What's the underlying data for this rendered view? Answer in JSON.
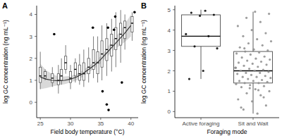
{
  "chart_data": [
    {
      "type": "box",
      "title": "A",
      "xlabel": "Field body temperature (°C)",
      "ylabel": "log GC concentration (ng mL⁻¹)",
      "xlim": [
        24.4,
        41.2
      ],
      "xticks": [
        25,
        30,
        35,
        40
      ],
      "ylim": [
        -0.7,
        4.4
      ],
      "yticks": [
        0,
        1,
        2,
        3,
        4
      ],
      "color": "#595959",
      "boxes": {
        "x": [
          25.0,
          25.8,
          27.0,
          28.0,
          28.5,
          29.2,
          30.0,
          30.8,
          31.5,
          32.2,
          33.0,
          33.8,
          34.5,
          35.2,
          36.0,
          36.8,
          37.5,
          38.3,
          39.0,
          40.2
        ],
        "whisker_low": [
          0.6,
          1.0,
          0.7,
          0.4,
          0.8,
          1.3,
          0.6,
          0.9,
          0.8,
          0.7,
          0.9,
          1.1,
          0.9,
          1.0,
          1.2,
          1.4,
          1.6,
          1.8,
          2.4,
          2.8
        ],
        "q1": [
          0.9,
          1.1,
          0.9,
          0.8,
          1.0,
          1.5,
          0.9,
          1.2,
          1.0,
          1.0,
          1.3,
          1.5,
          1.3,
          1.6,
          1.9,
          2.1,
          2.4,
          2.6,
          2.9,
          3.2
        ],
        "median": [
          1.2,
          1.2,
          1.1,
          1.0,
          1.2,
          1.8,
          1.1,
          1.5,
          1.3,
          1.3,
          1.6,
          1.8,
          1.8,
          2.2,
          2.4,
          2.6,
          2.9,
          3.1,
          3.4,
          3.6
        ],
        "q3": [
          1.6,
          1.4,
          1.3,
          1.3,
          1.5,
          2.1,
          1.4,
          1.8,
          1.7,
          1.8,
          2.0,
          2.4,
          2.3,
          2.8,
          2.9,
          3.1,
          3.4,
          3.6,
          3.7,
          3.9
        ],
        "whisker_high": [
          2.3,
          1.5,
          1.6,
          1.7,
          2.0,
          2.6,
          1.7,
          2.0,
          2.2,
          2.4,
          2.5,
          3.0,
          3.0,
          3.5,
          3.6,
          3.8,
          4.1,
          4.2,
          4.0,
          4.1
        ]
      },
      "outliers": {
        "x": [
          27.3,
          33.7,
          36.2,
          37.2,
          37.4,
          35.3,
          36.0,
          36.3,
          38.5,
          40.6
        ],
        "y": [
          3.1,
          3.4,
          3.4,
          3.3,
          3.9,
          0.5,
          -0.1,
          -0.35,
          0.9,
          4.1
        ],
        "color": "#000000"
      },
      "fit": {
        "x": [
          25,
          26,
          27,
          28,
          29,
          30,
          31,
          32,
          33,
          34,
          35,
          36,
          37,
          38,
          39,
          40
        ],
        "y": [
          1.15,
          1.05,
          1.0,
          0.98,
          1.0,
          1.05,
          1.15,
          1.3,
          1.5,
          1.7,
          1.95,
          2.25,
          2.55,
          2.85,
          3.15,
          3.5
        ],
        "lower": [
          0.6,
          0.65,
          0.72,
          0.78,
          0.82,
          0.9,
          1.0,
          1.15,
          1.35,
          1.55,
          1.78,
          2.05,
          2.35,
          2.55,
          2.75,
          3.0
        ],
        "upper": [
          1.75,
          1.45,
          1.28,
          1.18,
          1.18,
          1.2,
          1.3,
          1.45,
          1.65,
          1.85,
          2.1,
          2.45,
          2.85,
          3.15,
          3.55,
          4.0
        ],
        "color": "#333333"
      }
    },
    {
      "type": "box",
      "title": "B",
      "xlabel": "Foraging mode",
      "ylabel": "log GC concentration (ng mL⁻¹)",
      "categories": [
        "Active foraging",
        "Sit and Wait"
      ],
      "ylim": [
        -0.3,
        5.2
      ],
      "yticks": [
        0,
        1,
        2,
        3,
        4,
        5
      ],
      "color": "#333333",
      "boxes": {
        "whisker_low": [
          1.6,
          -0.1
        ],
        "q1": [
          3.2,
          1.4
        ],
        "median": [
          3.7,
          2.0
        ],
        "q3": [
          4.75,
          2.95
        ],
        "whisker_high": [
          5.0,
          4.9
        ]
      },
      "points": [
        [
          4.95,
          4.85,
          4.75,
          4.7,
          3.8,
          3.7,
          3.2,
          3.1,
          2.0,
          1.6
        ],
        [
          -0.1,
          0.1,
          0.3,
          0.5,
          0.6,
          0.8,
          0.9,
          1.0,
          1.1,
          1.2,
          1.25,
          1.3,
          1.35,
          1.4,
          1.4,
          1.45,
          1.5,
          1.5,
          1.55,
          1.6,
          1.65,
          1.7,
          1.7,
          1.75,
          1.8,
          1.85,
          1.9,
          1.9,
          1.95,
          2.0,
          2.0,
          2.05,
          2.1,
          2.15,
          2.2,
          2.25,
          2.3,
          2.35,
          2.4,
          2.45,
          2.5,
          2.55,
          2.6,
          2.65,
          2.7,
          2.8,
          2.85,
          2.9,
          2.95,
          3.0,
          3.05,
          3.15,
          3.25,
          3.35,
          3.45,
          3.55,
          3.7,
          3.85,
          4.0,
          4.2,
          4.4,
          4.6,
          4.8,
          4.9,
          0.2,
          0.7,
          1.15,
          2.15,
          1.05,
          3.1
        ]
      ],
      "point_colors": [
        "#000000",
        "#8c8c8c"
      ]
    }
  ]
}
